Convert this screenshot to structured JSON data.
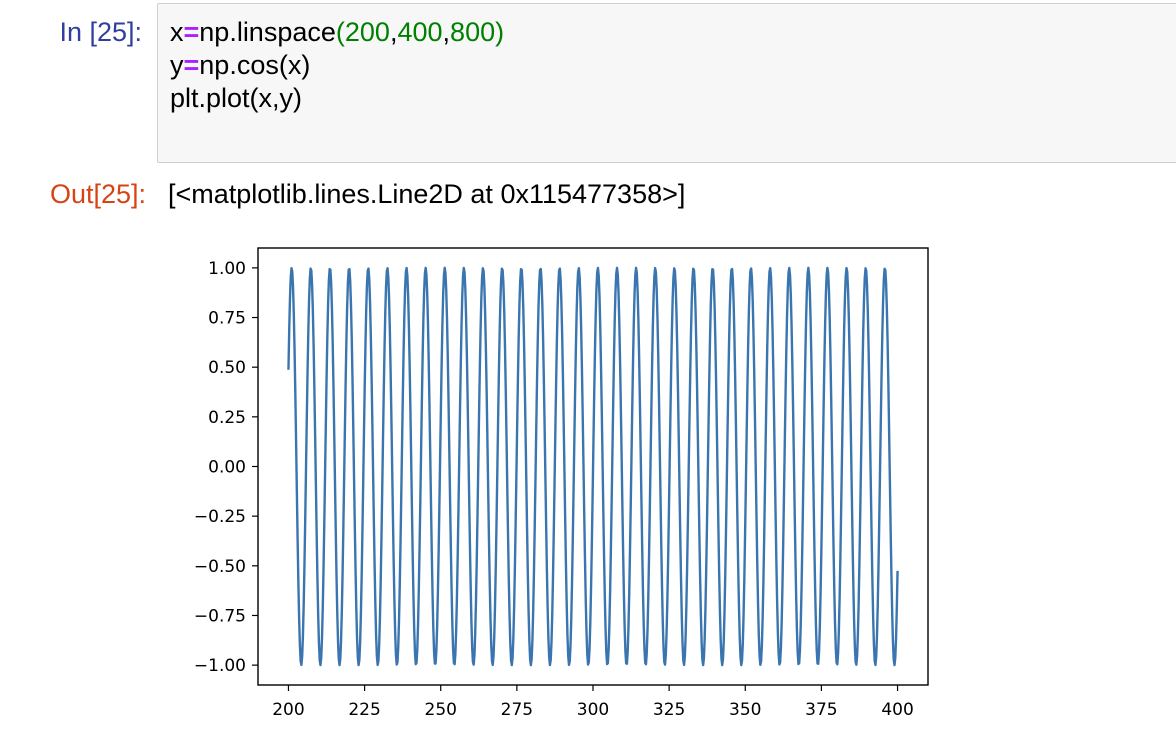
{
  "cell": {
    "in_prompt": "In [25]:",
    "code_lines": [
      [
        {
          "t": "x",
          "c": ""
        },
        {
          "t": "=",
          "c": "op"
        },
        {
          "t": "np.linspace",
          "c": ""
        },
        {
          "t": "(",
          "c": "paren"
        },
        {
          "t": "200",
          "c": "num"
        },
        {
          "t": ",",
          "c": ""
        },
        {
          "t": "400",
          "c": "num"
        },
        {
          "t": ",",
          "c": ""
        },
        {
          "t": "800",
          "c": "num"
        },
        {
          "t": ")",
          "c": "paren"
        }
      ],
      [
        {
          "t": "y",
          "c": ""
        },
        {
          "t": "=",
          "c": "op"
        },
        {
          "t": "np.cos(x)",
          "c": ""
        }
      ],
      [
        {
          "t": "plt.plot(x,y)",
          "c": ""
        }
      ]
    ],
    "out_prompt": "Out[25]:",
    "output_text": "[<matplotlib.lines.Line2D at 0x115477358>]"
  },
  "chart_data": {
    "type": "line",
    "function": "cos(x)",
    "x_start": 200,
    "x_end": 400,
    "num_points": 800,
    "xlim": [
      190,
      410
    ],
    "ylim": [
      -1.1,
      1.1
    ],
    "x_ticks": [
      200,
      225,
      250,
      275,
      300,
      325,
      350,
      375,
      400
    ],
    "x_tick_labels": [
      "200",
      "225",
      "250",
      "275",
      "300",
      "325",
      "350",
      "375",
      "400"
    ],
    "y_ticks": [
      1.0,
      0.75,
      0.5,
      0.25,
      0.0,
      -0.25,
      -0.5,
      -0.75,
      -1.0
    ],
    "y_tick_labels": [
      "1.00",
      "0.75",
      "0.50",
      "0.25",
      "0.00",
      "−0.25",
      "−0.50",
      "−0.75",
      "−1.00"
    ],
    "line_color": "#3b75af",
    "title": "",
    "xlabel": "",
    "ylabel": "",
    "grid": false
  }
}
